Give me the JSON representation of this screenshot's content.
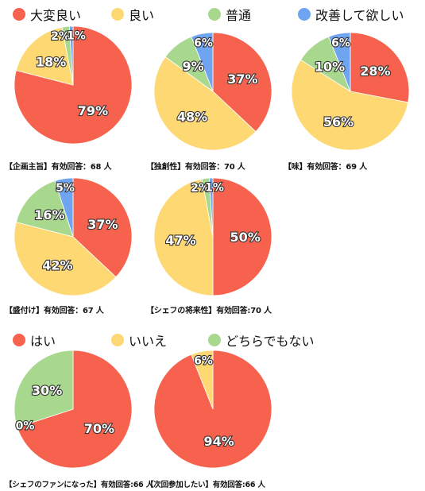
{
  "colors": {
    "大変良い": "#f7624e",
    "良い": "#fdd873",
    "普通": "#a8d88e",
    "改善して欲しい": "#6ea4f0",
    "はい": "#f7624e",
    "いいえ": "#fdd873",
    "どちらでもない": "#a8d88e"
  },
  "legend_top": [
    "大変良い",
    "良い",
    "普通",
    "改善して欲しい"
  ],
  "legend_bottom": [
    "はい",
    "いいえ",
    "どちらでもない"
  ],
  "chart_data": [
    {
      "type": "pie",
      "caption": "【企画主旨】有効回答：68 人",
      "categories": [
        "大変良い",
        "良い",
        "普通",
        "改善して欲しい"
      ],
      "values": [
        79,
        18,
        2,
        1
      ],
      "labels": [
        "79%",
        "18%",
        "2%",
        "1%"
      ]
    },
    {
      "type": "pie",
      "caption": "【独創性】有効回答：70 人",
      "categories": [
        "大変良い",
        "良い",
        "普通",
        "改善して欲しい"
      ],
      "values": [
        37,
        48,
        9,
        6
      ],
      "labels": [
        "37%",
        "48%",
        "9%",
        "6%"
      ]
    },
    {
      "type": "pie",
      "caption": "【味】有効回答：69 人",
      "categories": [
        "大変良い",
        "良い",
        "普通",
        "改善して欲しい"
      ],
      "values": [
        28,
        56,
        10,
        6
      ],
      "labels": [
        "28%",
        "56%",
        "10%",
        "6%"
      ]
    },
    {
      "type": "pie",
      "caption": "【盛付け】有効回答：67 人",
      "categories": [
        "大変良い",
        "良い",
        "普通",
        "改善して欲しい"
      ],
      "values": [
        37,
        42,
        16,
        5
      ],
      "labels": [
        "37%",
        "42%",
        "16%",
        "5%"
      ]
    },
    {
      "type": "pie",
      "caption": "【シェフの将来性】有効回答:70 人",
      "categories": [
        "大変良い",
        "良い",
        "普通",
        "改善して欲しい"
      ],
      "values": [
        50,
        47,
        2,
        1
      ],
      "labels": [
        "50%",
        "47%",
        "2%",
        "1%"
      ]
    },
    {
      "type": "pie",
      "caption": "【シェフのファンになった】有効回答:66 人",
      "categories": [
        "はい",
        "いいえ",
        "どちらでもない"
      ],
      "values": [
        70,
        0,
        30
      ],
      "labels": [
        "70%",
        "0%",
        "30%"
      ]
    },
    {
      "type": "pie",
      "caption": "【次回参加したい】有効回答:66 人",
      "categories": [
        "はい",
        "いいえ",
        "どちらでもない"
      ],
      "values": [
        94,
        6,
        0
      ],
      "labels": [
        "94%",
        "6%",
        ""
      ]
    }
  ]
}
